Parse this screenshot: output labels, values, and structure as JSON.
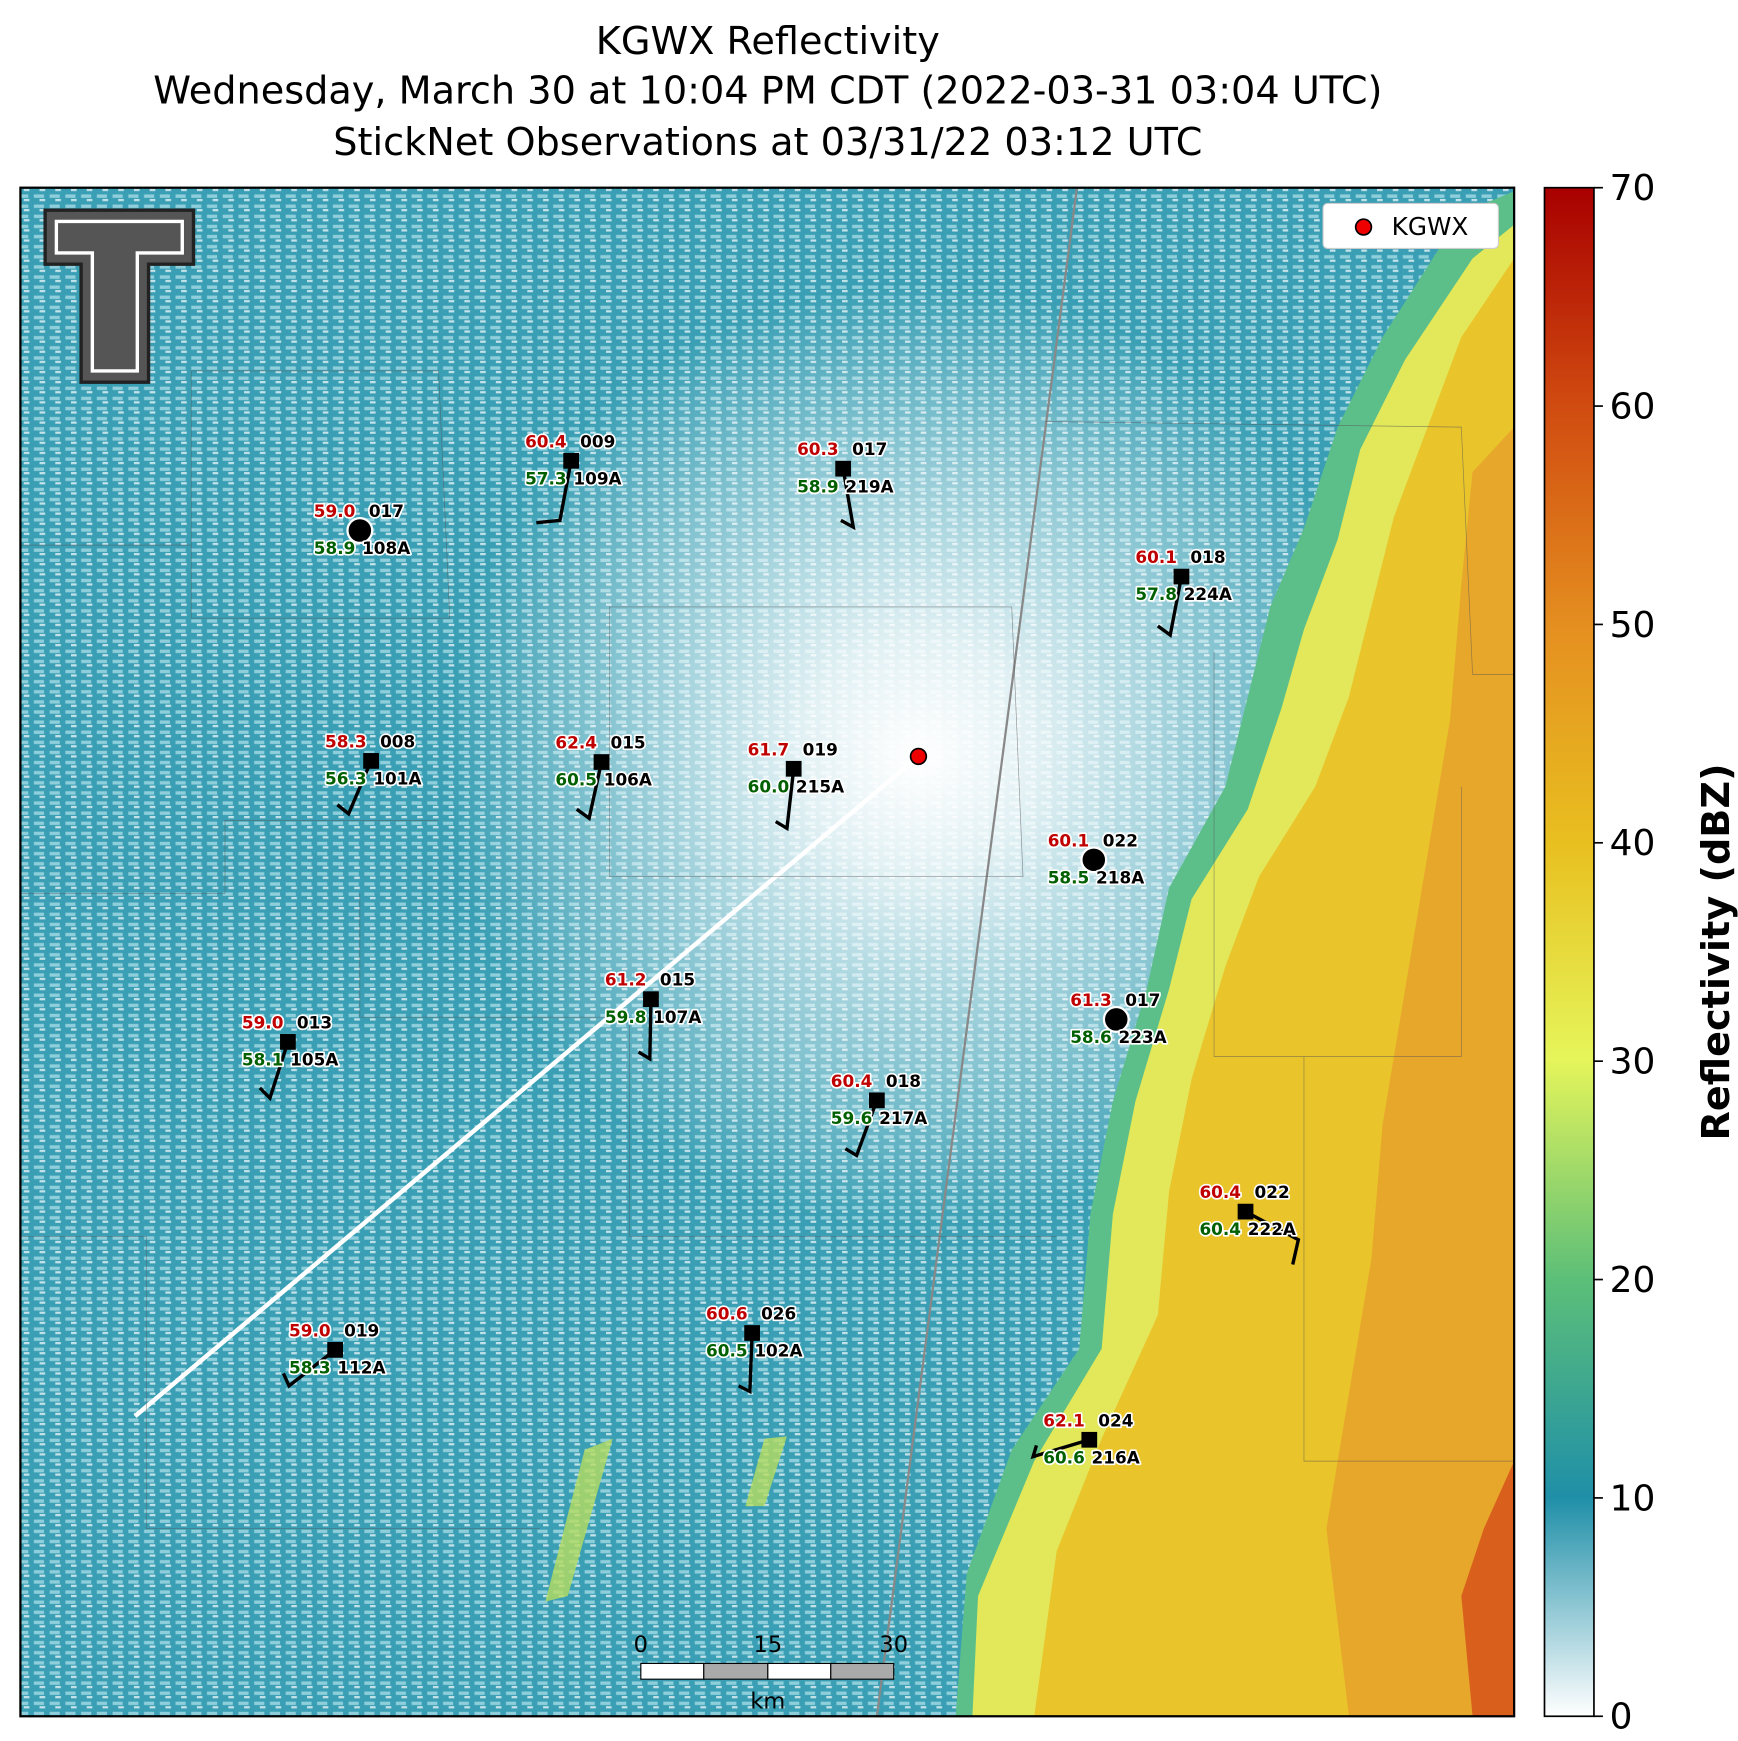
{
  "title": [
    "KGWX Reflectivity",
    "Wednesday, March 30 at 10:04 PM CDT (2022-03-31 03:04 UTC)",
    "StickNet Observations at 03/31/22 03:12 UTC"
  ],
  "legend": "KGWX",
  "colorbar": {
    "label": "Reflectivity (dBZ)",
    "range": [
      0,
      70
    ],
    "ticks": [
      0,
      10,
      20,
      30,
      40,
      50,
      60,
      70
    ]
  },
  "scale_bar": {
    "ticks": [
      "0",
      "15",
      "30"
    ],
    "unit": "km"
  },
  "stations": [
    {
      "id": "109A",
      "temperature": "60.4",
      "dewpoint": "57.3",
      "wind": "009"
    },
    {
      "id": "219A",
      "temperature": "60.3",
      "dewpoint": "58.9",
      "wind": "017"
    },
    {
      "id": "108A",
      "temperature": "59.0",
      "dewpoint": "58.9",
      "wind": "017"
    },
    {
      "id": "224A",
      "temperature": "60.1",
      "dewpoint": "57.8",
      "wind": "018"
    },
    {
      "id": "101A",
      "temperature": "58.3",
      "dewpoint": "56.3",
      "wind": "008"
    },
    {
      "id": "106A",
      "temperature": "62.4",
      "dewpoint": "60.5",
      "wind": "015"
    },
    {
      "id": "215A",
      "temperature": "61.7",
      "dewpoint": "60.0",
      "wind": "019"
    },
    {
      "id": "218A",
      "temperature": "60.1",
      "dewpoint": "58.5",
      "wind": "022"
    },
    {
      "id": "107A",
      "temperature": "61.2",
      "dewpoint": "59.8",
      "wind": "015"
    },
    {
      "id": "105A",
      "temperature": "59.0",
      "dewpoint": "58.1",
      "wind": "013"
    },
    {
      "id": "223A",
      "temperature": "61.3",
      "dewpoint": "58.6",
      "wind": "017"
    },
    {
      "id": "217A",
      "temperature": "60.4",
      "dewpoint": "59.6",
      "wind": "018"
    },
    {
      "id": "222A",
      "temperature": "60.4",
      "dewpoint": "60.4",
      "wind": "022"
    },
    {
      "id": "112A",
      "temperature": "59.0",
      "dewpoint": "58.3",
      "wind": "019"
    },
    {
      "id": "102A",
      "temperature": "60.6",
      "dewpoint": "60.5",
      "wind": "026"
    },
    {
      "id": "216A",
      "temperature": "62.1",
      "dewpoint": "60.6",
      "wind": "024"
    }
  ]
}
